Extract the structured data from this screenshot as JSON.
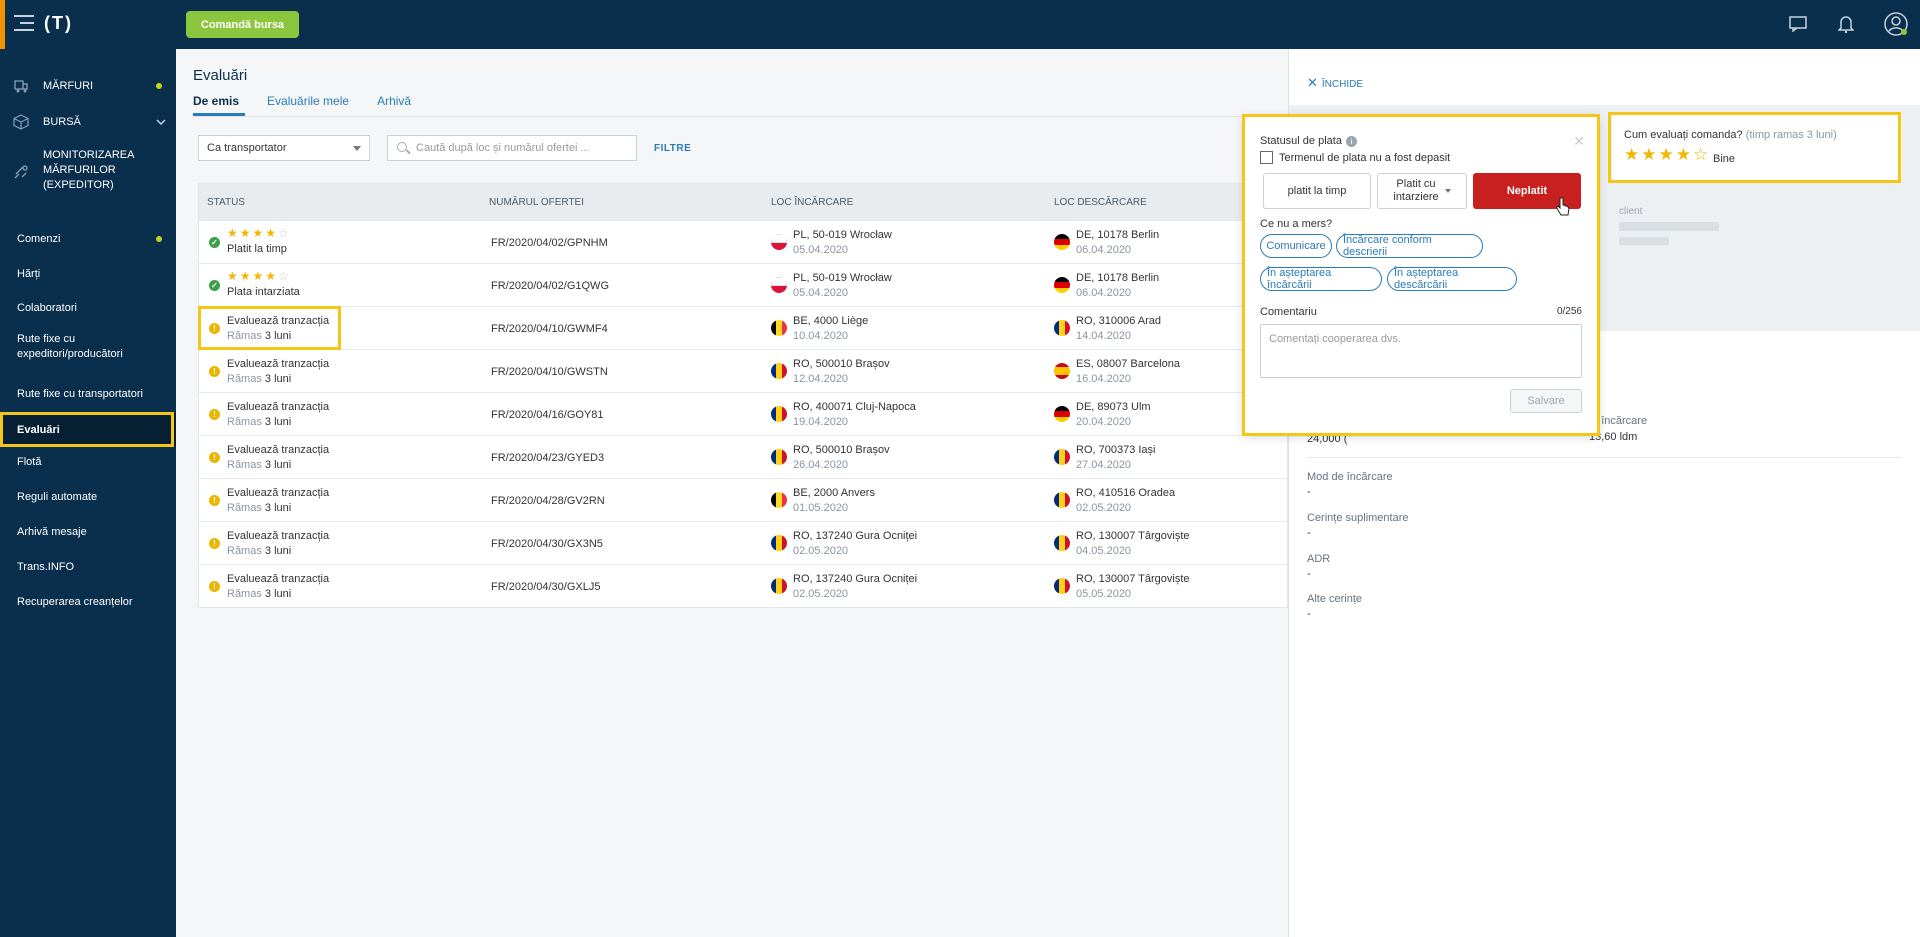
{
  "topbar": {
    "logo": "(T)",
    "command_button": "Comandă bursa",
    "icons": [
      "menu-icon",
      "chat-icon",
      "bell-icon",
      "user-icon"
    ]
  },
  "sidebar": {
    "marfuri": "Mărfuri",
    "bursa": "Bursă",
    "monitorizare": "Monitorizarea mărfurilor (expeditor)",
    "comenzi": "Comenzi",
    "harti": "Hărți",
    "colaboratori": "Colaboratori",
    "rute_expeditori": "Rute fixe cu expeditori/producători",
    "rute_transportatori": "Rute fixe cu transportatori",
    "evaluari": "Evaluări",
    "flota": "Flotă",
    "reguli": "Reguli automate",
    "arhiva": "Arhivă mesaje",
    "transinfo": "Trans.INFO",
    "recuperare": "Recuperarea creanțelor"
  },
  "main": {
    "title": "Evaluări",
    "tabs": [
      "De emis",
      "Evaluările mele",
      "Arhivă"
    ],
    "role_select": "Ca transportator",
    "search_placeholder": "Caută după loc și numărul ofertei ...",
    "filters": "FILTRE",
    "columns": [
      "Status",
      "Numărul ofertei",
      "Loc încărcare",
      "Loc descărcare"
    ]
  },
  "rows": [
    {
      "status_type": "rated",
      "stars": 4,
      "status": "Platit la timp",
      "offer": "FR/2020/04/02/GPNHM",
      "load": "PL, 50-019 Wrocław",
      "load_date": "05.04.2020",
      "load_flag": "PL",
      "unload": "DE, 10178 Berlin",
      "unload_date": "06.04.2020",
      "unload_flag": "DE"
    },
    {
      "status_type": "rated",
      "stars": 4,
      "status": "Plata intarziata",
      "offer": "FR/2020/04/02/G1QWG",
      "load": "PL, 50-019 Wrocław",
      "load_date": "05.04.2020",
      "load_flag": "PL",
      "unload": "DE, 10178 Berlin",
      "unload_date": "06.04.2020",
      "unload_flag": "DE"
    },
    {
      "status_type": "pending",
      "status": "Evaluează tranzacția",
      "remaining_prefix": "Rămas",
      "remaining": "3 luni",
      "offer": "FR/2020/04/10/GWMF4",
      "load": "BE, 4000 Liège",
      "load_date": "10.04.2020",
      "load_flag": "BE",
      "unload": "RO, 310006 Arad",
      "unload_date": "14.04.2020",
      "unload_flag": "RO"
    },
    {
      "status_type": "pending",
      "status": "Evaluează tranzacția",
      "remaining_prefix": "Rămas",
      "remaining": "3 luni",
      "offer": "FR/2020/04/10/GWSTN",
      "load": "RO, 500010 Brașov",
      "load_date": "12.04.2020",
      "load_flag": "RO",
      "unload": "ES, 08007 Barcelona",
      "unload_date": "16.04.2020",
      "unload_flag": "ES"
    },
    {
      "status_type": "pending",
      "status": "Evaluează tranzacția",
      "remaining_prefix": "Rămas",
      "remaining": "3 luni",
      "offer": "FR/2020/04/16/GOY81",
      "load": "RO, 400071 Cluj-Napoca",
      "load_date": "19.04.2020",
      "load_flag": "RO",
      "unload": "DE, 89073 Ulm",
      "unload_date": "20.04.2020",
      "unload_flag": "DE"
    },
    {
      "status_type": "pending",
      "status": "Evaluează tranzacția",
      "remaining_prefix": "Rămas",
      "remaining": "3 luni",
      "offer": "FR/2020/04/23/GYED3",
      "load": "RO, 500010 Brașov",
      "load_date": "26.04.2020",
      "load_flag": "RO",
      "unload": "RO, 700373 Iași",
      "unload_date": "27.04.2020",
      "unload_flag": "RO"
    },
    {
      "status_type": "pending",
      "status": "Evaluează tranzacția",
      "remaining_prefix": "Rămas",
      "remaining": "3 luni",
      "offer": "FR/2020/04/28/GV2RN",
      "load": "BE, 2000 Anvers",
      "load_date": "01.05.2020",
      "load_flag": "BE",
      "unload": "RO, 410516 Oradea",
      "unload_date": "02.05.2020",
      "unload_flag": "RO"
    },
    {
      "status_type": "pending",
      "status": "Evaluează tranzacția",
      "remaining_prefix": "Rămas",
      "remaining": "3 luni",
      "offer": "FR/2020/04/30/GX3N5",
      "load": "RO, 137240 Gura Ocniței",
      "load_date": "02.05.2020",
      "load_flag": "RO",
      "unload": "RO, 130007 Târgoviște",
      "unload_date": "04.05.2020",
      "unload_flag": "RO"
    },
    {
      "status_type": "pending",
      "status": "Evaluează tranzacția",
      "remaining_prefix": "Rămas",
      "remaining": "3 luni",
      "offer": "FR/2020/04/30/GXLJ5",
      "load": "RO, 137240 Gura Ocniței",
      "load_date": "02.05.2020",
      "load_flag": "RO",
      "unload": "RO, 130007 Târgoviște",
      "unload_date": "05.05.2020",
      "unload_flag": "RO"
    }
  ],
  "panel": {
    "close": "Închide",
    "eval_question": "Cum evaluați comanda?",
    "eval_time": "(timp ramas 3 luni)",
    "eval_stars": 4,
    "eval_label": "Bine",
    "client_label": "client",
    "quantity_partial": "24,000 (",
    "meters_label_partial": "tri încărcare",
    "meters_value": "13,60 ldm",
    "mod_label": "Mod de încărcare",
    "mod_value": "-",
    "cerinte_label": "Cerințe suplimentare",
    "cerinte_value": "-",
    "adr_label": "ADR",
    "adr_value": "-",
    "alte_label": "Alte cerințe",
    "alte_value": "-"
  },
  "popup": {
    "title": "Statusul de plata",
    "checkbox_label": "Termenul de plata nu a fost depasit",
    "option_on_time": "platit la timp",
    "option_late_line1": "Platit cu",
    "option_late_line2": "intarziere",
    "option_unpaid": "Neplatit",
    "question": "Ce nu a mers?",
    "chips": [
      "Comunicare",
      "Încărcare conform descrierii",
      "În așteptarea încărcării",
      "În așteptarea descărcării"
    ],
    "comment_label": "Comentariu",
    "comment_count": "0/256",
    "comment_placeholder": "Comentați cooperarea dvs.",
    "save": "Salvare"
  },
  "colors": {
    "topbar": "#0a2f4d",
    "accent_green": "#8cc63f",
    "link_blue": "#2a7cb9",
    "danger_red": "#c8201e",
    "highlight_yellow": "#f5c518",
    "star": "#f2b705"
  }
}
